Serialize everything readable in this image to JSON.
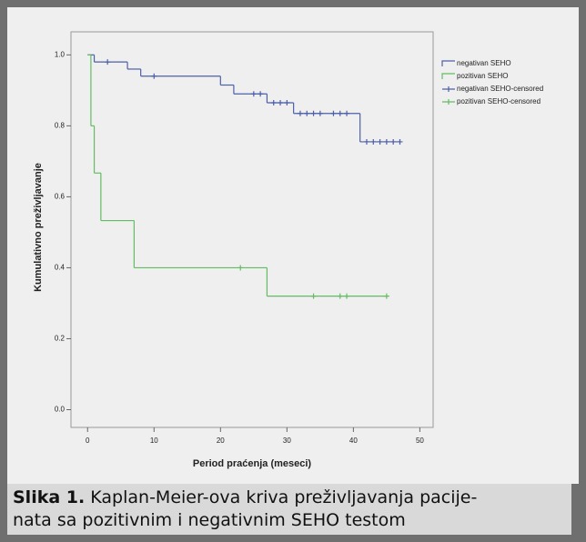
{
  "chart_data": {
    "type": "step",
    "x_label": "Period praćenja (meseci)",
    "y_label": "Kumulativno preživljavanje",
    "xlim": [
      -2.5,
      52
    ],
    "ylim": [
      -0.05,
      1.065
    ],
    "xticks": [
      0,
      10,
      20,
      30,
      40,
      50
    ],
    "yticks": [
      {
        "value": 0,
        "label": "0.0"
      },
      0.2,
      0.4,
      0.6,
      0.8,
      {
        "value": 1,
        "label": "1.0"
      }
    ],
    "legend": "right",
    "series": [
      {
        "name": "negativan SEHO",
        "color": "#4d5fa9",
        "marker": "step",
        "x": [
          0,
          1,
          6,
          8,
          20,
          22,
          27,
          31,
          41,
          47
        ],
        "values": [
          1.0,
          0.98,
          0.96,
          0.94,
          0.915,
          0.89,
          0.865,
          0.835,
          0.755,
          0.755
        ]
      },
      {
        "name": "pozitivan SEHO",
        "color": "#62bd62",
        "marker": "step",
        "x": [
          0,
          0.5,
          1,
          2,
          7,
          27,
          45
        ],
        "values": [
          1.0,
          0.8,
          0.667,
          0.533,
          0.4,
          0.32,
          0.32
        ]
      },
      {
        "name": "negativan SEHO-censored",
        "color": "#4d5fa9",
        "marker": "+",
        "x": [
          3,
          10,
          25,
          26,
          28,
          29,
          30,
          32,
          33,
          34,
          35,
          37,
          38,
          39,
          42,
          43,
          44,
          45,
          46,
          47
        ],
        "values": [
          0.98,
          0.94,
          0.89,
          0.89,
          0.865,
          0.865,
          0.865,
          0.835,
          0.835,
          0.835,
          0.835,
          0.835,
          0.835,
          0.835,
          0.755,
          0.755,
          0.755,
          0.755,
          0.755,
          0.755
        ]
      },
      {
        "name": "pozitivan SEHO-censored",
        "color": "#62bd62",
        "marker": "+",
        "x": [
          23,
          34,
          38,
          39,
          45
        ],
        "values": [
          0.4,
          0.32,
          0.32,
          0.32,
          0.32
        ]
      }
    ]
  },
  "caption": {
    "label": "Slika 1.",
    "lines": [
      "Kaplan-Meier-ova kriva preživljavanja pacije-",
      "nata sa pozitivnim i negativnim SEHO testom"
    ]
  }
}
